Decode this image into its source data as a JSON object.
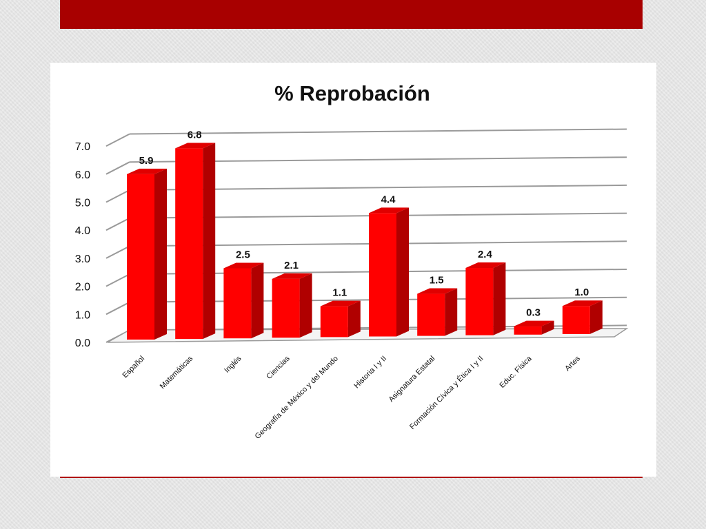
{
  "colors": {
    "band": "#a80000",
    "bar_front": "#ff0000",
    "bar_side": "#b00000",
    "bar_top": "#e00000",
    "grid": "#9a9a9a"
  },
  "chart_data": {
    "type": "bar",
    "title": "% Reprobación",
    "xlabel": "",
    "ylabel": "",
    "ylim": [
      0,
      7
    ],
    "grid": true,
    "three_d": true,
    "y_ticks": [
      "0.0",
      "1.0",
      "2.0",
      "3.0",
      "4.0",
      "5.0",
      "6.0",
      "7.0"
    ],
    "categories": [
      "Español",
      "Matemáticas",
      "Inglés",
      "Ciencias",
      "Geografía de México y del Mundo",
      "Historia I y II",
      "Asignatura Estatal",
      "Formación Cívica y Ética I y II",
      "Educ. Física",
      "Artes"
    ],
    "values": [
      5.9,
      6.8,
      2.5,
      2.1,
      1.1,
      4.4,
      1.5,
      2.4,
      0.3,
      1.0
    ],
    "data_labels": [
      "5.9",
      "6.8",
      "2.5",
      "2.1",
      "1.1",
      "4.4",
      "1.5",
      "2.4",
      "0.3",
      "1.0"
    ]
  }
}
